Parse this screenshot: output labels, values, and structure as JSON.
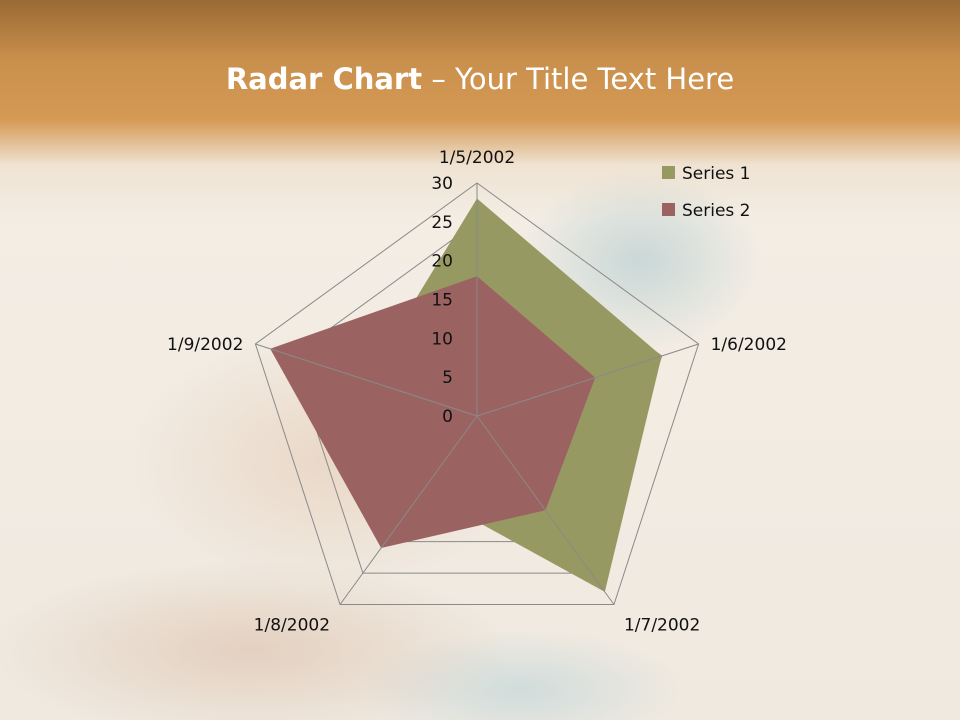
{
  "slide": {
    "title_bold": "Radar Chart",
    "title_rest": " – Your Title Text Here"
  },
  "chart_data": {
    "type": "radar",
    "categories": [
      "1/5/2002",
      "1/6/2002",
      "1/7/2002",
      "1/8/2002",
      "1/9/2002"
    ],
    "series": [
      {
        "name": "Series 1",
        "color": "#979962",
        "values": [
          28,
          25,
          28,
          12,
          15
        ]
      },
      {
        "name": "Series 2",
        "color": "#9b6262",
        "values": [
          18,
          16,
          15,
          21,
          28
        ]
      }
    ],
    "ylim": [
      0,
      30
    ],
    "ticks": [
      "0",
      "5",
      "10",
      "15",
      "20",
      "25",
      "30"
    ],
    "legend": "top-right",
    "grid": true
  }
}
